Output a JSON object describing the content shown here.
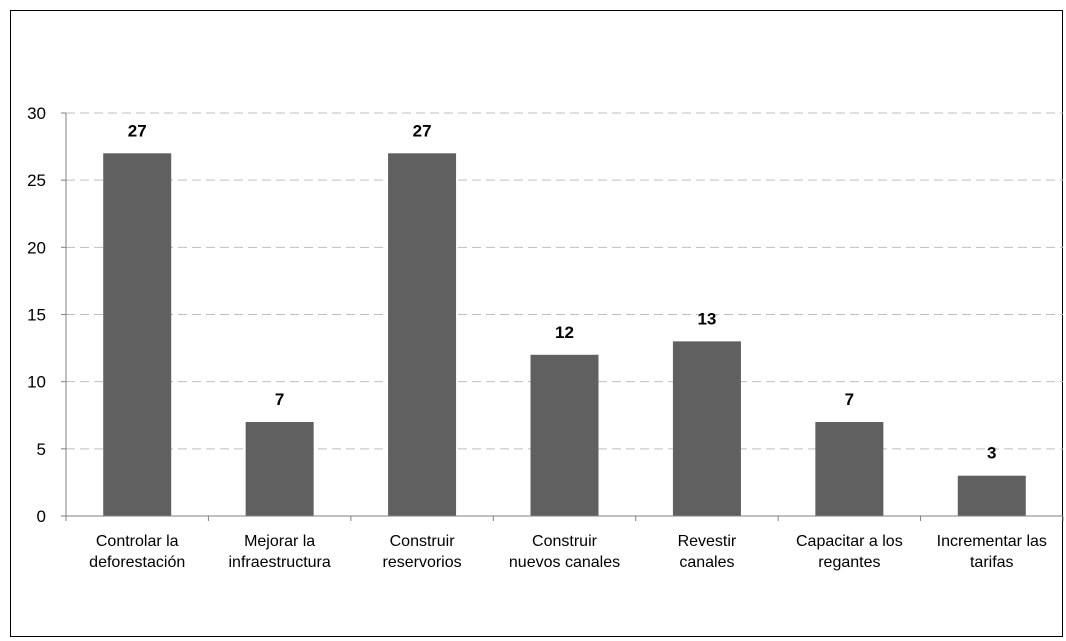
{
  "chart_data": {
    "type": "bar",
    "title": "",
    "xlabel": "",
    "ylabel": "",
    "categories": [
      [
        "Controlar la",
        "deforestación"
      ],
      [
        "Mejorar la",
        "infraestructura"
      ],
      [
        "Construir",
        "reservorios"
      ],
      [
        "Construir",
        "nuevos canales"
      ],
      [
        "Revestir",
        "canales"
      ],
      [
        "Capacitar a los",
        "regantes"
      ],
      [
        "Incrementar las",
        "tarifas"
      ]
    ],
    "values": [
      27,
      7,
      27,
      12,
      13,
      7,
      3
    ],
    "data_labels": [
      "27",
      "7",
      "27",
      "12",
      "13",
      "7",
      "3"
    ],
    "ylim": [
      0,
      30
    ],
    "yticks": [
      0,
      5,
      10,
      15,
      20,
      25,
      30
    ],
    "grid": "horizontal dashed",
    "legend": "none",
    "colors": {
      "bar": "#606060",
      "grid": "#bfbfbf",
      "axis": "#808080"
    }
  }
}
